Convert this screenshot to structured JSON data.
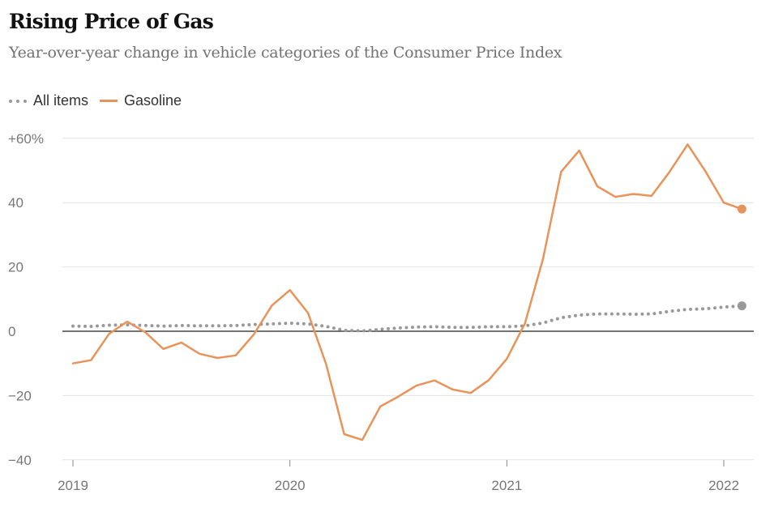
{
  "title": "Rising Price of Gas",
  "subtitle": "Year-over-year change in vehicle categories of the Consumer Price Index",
  "chart_data": {
    "type": "line",
    "title": "Rising Price of Gas",
    "subtitle": "Year-over-year change in vehicle categories of the Consumer Price Index",
    "x_start": "2019-01",
    "x_frequency": "monthly",
    "x_ticks": [
      "2019",
      "2020",
      "2021",
      "2022"
    ],
    "y_ticks": [
      "+60%",
      "40",
      "20",
      "0",
      "−20",
      "−40"
    ],
    "y_tick_values": [
      60,
      40,
      20,
      0,
      -20,
      -40
    ],
    "ylim": [
      -40,
      60
    ],
    "grid": true,
    "legend_placement": "top-left",
    "series": [
      {
        "name": "All items",
        "style": "dotted",
        "color": "#999999",
        "values": [
          1.6,
          1.5,
          1.9,
          2.0,
          1.8,
          1.6,
          1.8,
          1.7,
          1.7,
          1.8,
          2.1,
          2.3,
          2.5,
          2.3,
          1.5,
          0.3,
          0.1,
          0.6,
          1.0,
          1.3,
          1.4,
          1.2,
          1.2,
          1.4,
          1.4,
          1.7,
          2.6,
          4.2,
          5.0,
          5.4,
          5.4,
          5.3,
          5.4,
          6.2,
          6.8,
          7.0,
          7.5,
          7.9
        ]
      },
      {
        "name": "Gasoline",
        "style": "solid",
        "color": "#e8935a",
        "values": [
          -10.0,
          -9.0,
          -0.8,
          3.0,
          -0.3,
          -5.5,
          -3.5,
          -7.0,
          -8.3,
          -7.5,
          -1.0,
          8.0,
          12.8,
          5.7,
          -10.2,
          -32.0,
          -33.8,
          -23.4,
          -20.3,
          -16.9,
          -15.3,
          -18.1,
          -19.2,
          -15.2,
          -8.6,
          2.4,
          22.5,
          49.6,
          56.2,
          45.1,
          41.8,
          42.7,
          42.1,
          49.6,
          58.1,
          49.6,
          40.0,
          38.0
        ]
      }
    ]
  }
}
